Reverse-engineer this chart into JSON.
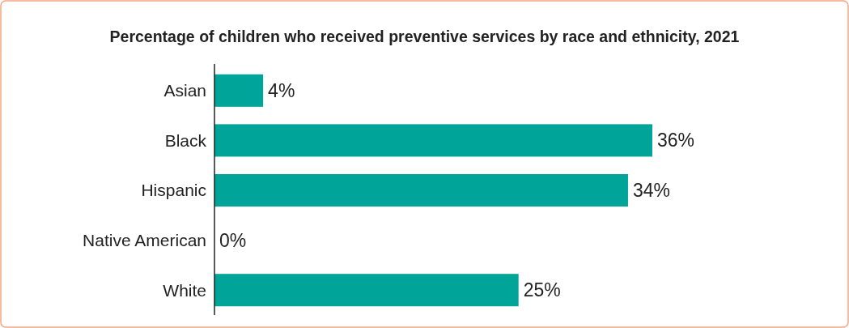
{
  "chart_data": {
    "type": "bar",
    "orientation": "horizontal",
    "title": "Percentage of children who received preventive services by race and ethnicity, 2021",
    "categories": [
      "Asian",
      "Black",
      "Hispanic",
      "Native American",
      "White"
    ],
    "values": [
      4,
      36,
      34,
      0,
      25
    ],
    "value_labels": [
      "4%",
      "36%",
      "34%",
      "0%",
      "25%"
    ],
    "color": "#00a499"
  }
}
